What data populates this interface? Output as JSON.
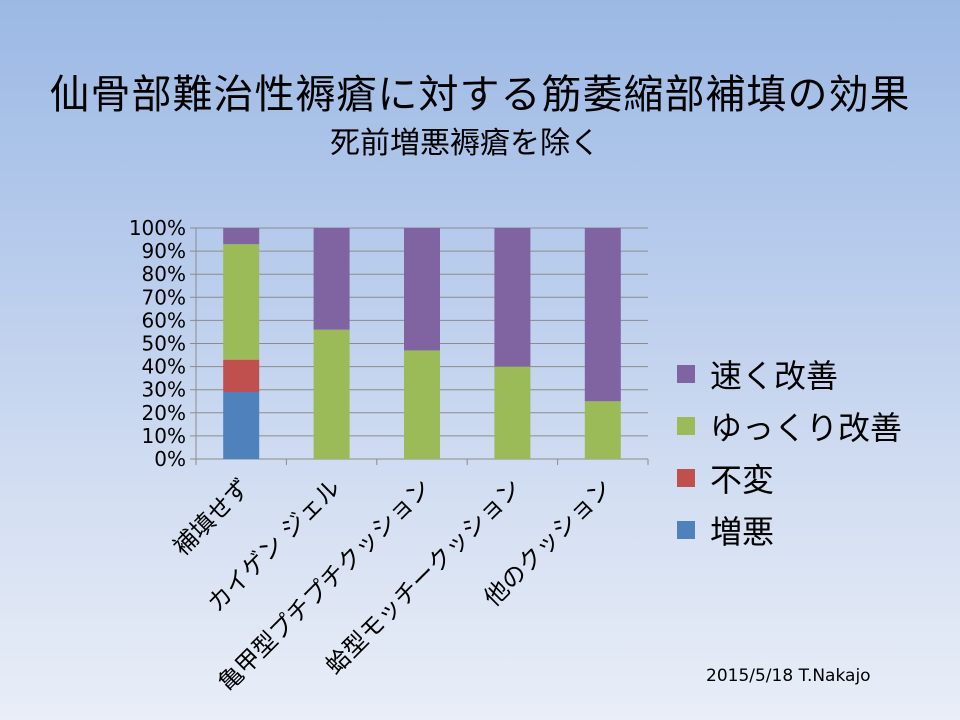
{
  "slide": {
    "title": "仙骨部難治性褥瘡に対する筋萎縮部補填の効果",
    "subtitle": "死前増悪褥瘡を除く",
    "footer": "2015/5/18  T.Nakajo"
  },
  "chart_data": {
    "type": "bar",
    "stacked": true,
    "percent": true,
    "categories": [
      "補填せず",
      "カイゲン ジェル",
      "亀甲型プチプチクッション",
      "蛤型モッチークッション",
      "他のクッション"
    ],
    "series": [
      {
        "name": "増悪",
        "color": "#4f81bd",
        "values": [
          29,
          0,
          0,
          0,
          0
        ]
      },
      {
        "name": "不変",
        "color": "#c0504d",
        "values": [
          14,
          0,
          0,
          0,
          0
        ]
      },
      {
        "name": "ゆっくり改善",
        "color": "#9bbb59",
        "values": [
          50,
          56,
          47,
          40,
          25
        ]
      },
      {
        "name": "速く改善",
        "color": "#8064a2",
        "values": [
          7,
          44,
          53,
          60,
          75
        ]
      }
    ],
    "ylim": [
      0,
      100
    ],
    "yticks": [
      "0%",
      "10%",
      "20%",
      "30%",
      "40%",
      "50%",
      "60%",
      "70%",
      "80%",
      "90%",
      "100%"
    ],
    "grid": true,
    "legend_position": "right",
    "legend_order": [
      "速く改善",
      "ゆっくり改善",
      "不変",
      "増悪"
    ]
  }
}
